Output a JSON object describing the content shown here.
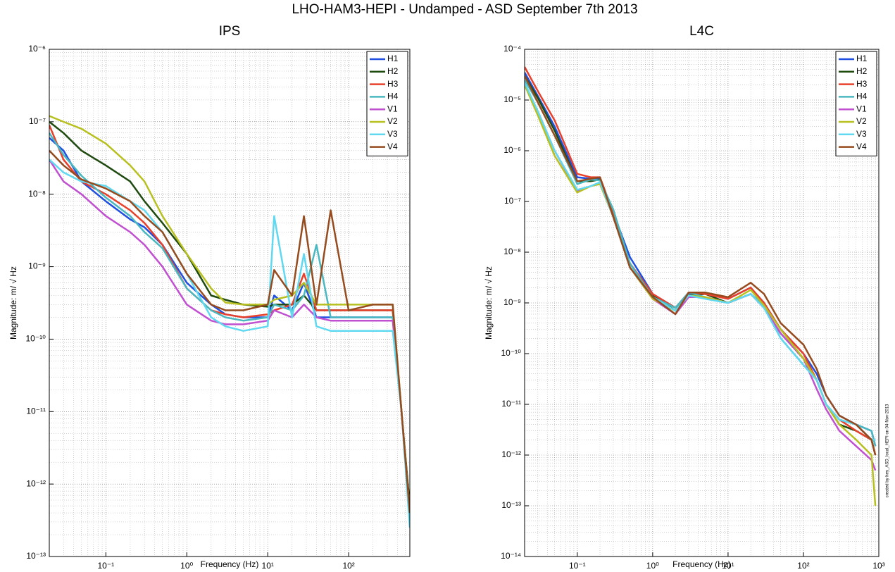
{
  "title": "LHO-HAM3-HEPI - Undamped - ASD September 7th 2013",
  "chart_data": [
    {
      "type": "line",
      "title": "IPS",
      "x_label": "Frequency (Hz)",
      "y_label": "Magnitude: m/ √ Hz",
      "log_x": true,
      "log_y": true,
      "grid": true,
      "minor_grid": true,
      "legend": "upper right",
      "xlim": [
        0.02,
        570
      ],
      "ylim": [
        1e-13,
        1e-06
      ],
      "xticks": [
        {
          "value": 0.1,
          "label": "10⁻¹"
        },
        {
          "value": 1,
          "label": "10⁰"
        },
        {
          "value": 10,
          "label": "10¹"
        },
        {
          "value": 100,
          "label": "10²"
        }
      ],
      "yticks": [
        {
          "value": 1e-13,
          "label": "10⁻¹³"
        },
        {
          "value": 1e-12,
          "label": "10⁻¹²"
        },
        {
          "value": 1e-11,
          "label": "10⁻¹¹"
        },
        {
          "value": 1e-10,
          "label": "10⁻¹⁰"
        },
        {
          "value": 1e-09,
          "label": "10⁻⁹"
        },
        {
          "value": 1e-08,
          "label": "10⁻⁸"
        },
        {
          "value": 1e-07,
          "label": "10⁻⁷"
        },
        {
          "value": 1e-06,
          "label": "10⁻⁶"
        }
      ],
      "x": [
        0.02,
        0.03,
        0.05,
        0.1,
        0.2,
        0.3,
        0.5,
        1,
        2,
        3,
        5,
        10,
        12,
        20,
        28,
        40,
        60,
        100,
        200,
        350,
        450,
        570
      ],
      "series": [
        {
          "name": "H1",
          "color": "#1f4fe0",
          "values": [
            6e-08,
            4e-08,
            1.5e-08,
            8e-09,
            4.5e-09,
            3.5e-09,
            2e-09,
            6e-10,
            3e-10,
            2.2e-10,
            2e-10,
            2e-10,
            4e-10,
            2.5e-10,
            6e-10,
            2e-10,
            2e-10,
            2e-10,
            2e-10,
            2e-10,
            1e-11,
            4e-13
          ]
        },
        {
          "name": "H2",
          "color": "#1f4a10",
          "values": [
            1e-07,
            7e-08,
            4e-08,
            2.5e-08,
            1.5e-08,
            8e-09,
            4e-09,
            1.5e-09,
            4e-10,
            3.5e-10,
            3e-10,
            2.8e-10,
            3e-10,
            3e-10,
            4e-10,
            2.5e-10,
            2.5e-10,
            2.5e-10,
            2.5e-10,
            2.5e-10,
            1e-11,
            5e-13
          ]
        },
        {
          "name": "H3",
          "color": "#e8402a",
          "values": [
            9e-08,
            3e-08,
            1.5e-08,
            1e-08,
            6e-09,
            4e-09,
            2e-09,
            5e-10,
            2.5e-10,
            2.2e-10,
            2e-10,
            2.2e-10,
            2.5e-10,
            3e-10,
            8e-10,
            2.5e-10,
            2.5e-10,
            2.5e-10,
            2.5e-10,
            2.5e-10,
            1e-11,
            4e-13
          ]
        },
        {
          "name": "H4",
          "color": "#4ab8c0",
          "values": [
            7e-08,
            3.5e-08,
            1.8e-08,
            9e-09,
            5e-09,
            3e-09,
            1.8e-09,
            5e-10,
            2.5e-10,
            2e-10,
            1.8e-10,
            2e-10,
            3e-10,
            2.5e-10,
            4e-10,
            2e-09,
            2e-10,
            2e-10,
            2e-10,
            2e-10,
            1e-11,
            4e-13
          ]
        },
        {
          "name": "V1",
          "color": "#c050d0",
          "values": [
            3e-08,
            1.5e-08,
            1e-08,
            5e-09,
            3e-09,
            2e-09,
            1e-09,
            3e-10,
            1.8e-10,
            1.6e-10,
            1.6e-10,
            1.8e-10,
            2.5e-10,
            2e-10,
            3e-10,
            2e-10,
            1.8e-10,
            1.8e-10,
            1.8e-10,
            1.8e-10,
            1e-11,
            3e-13
          ]
        },
        {
          "name": "V2",
          "color": "#b8c020",
          "values": [
            1.2e-07,
            1e-07,
            8e-08,
            5e-08,
            2.5e-08,
            1.5e-08,
            5e-09,
            1.5e-09,
            5e-10,
            3.2e-10,
            3e-10,
            3e-10,
            3.5e-10,
            4e-10,
            6e-10,
            3e-10,
            3e-10,
            3e-10,
            3e-10,
            3e-10,
            1e-11,
            4e-13
          ]
        },
        {
          "name": "V3",
          "color": "#60d8f0",
          "values": [
            3e-08,
            2e-08,
            1.5e-08,
            1.3e-08,
            8e-09,
            6e-09,
            3e-09,
            8e-10,
            2e-10,
            1.5e-10,
            1.3e-10,
            1.5e-10,
            5e-09,
            2e-10,
            1.5e-09,
            1.5e-10,
            1.3e-10,
            1.3e-10,
            1.3e-10,
            1.3e-10,
            1e-11,
            2.5e-13
          ]
        },
        {
          "name": "V4",
          "color": "#964b1e",
          "values": [
            4e-08,
            2.5e-08,
            1.6e-08,
            1.2e-08,
            8e-09,
            5e-09,
            3e-09,
            8e-10,
            3e-10,
            2.5e-10,
            2.5e-10,
            3e-10,
            9e-10,
            4e-10,
            5e-09,
            3e-10,
            6e-09,
            2.5e-10,
            3e-10,
            3e-10,
            1e-11,
            4e-13
          ]
        }
      ]
    },
    {
      "type": "line",
      "title": "L4C",
      "x_label": "Frequency (Hz)",
      "y_label": "Magnitude: m/ √ Hz",
      "annotation": "created by hey_ASD_local_HEPI on 04-Nov-2013",
      "log_x": true,
      "log_y": true,
      "grid": true,
      "minor_grid": true,
      "legend": "upper right",
      "xlim": [
        0.02,
        1000
      ],
      "ylim": [
        1e-14,
        0.0001
      ],
      "xticks": [
        {
          "value": 0.1,
          "label": "10⁻¹"
        },
        {
          "value": 1,
          "label": "10⁰"
        },
        {
          "value": 10,
          "label": "10¹"
        },
        {
          "value": 100,
          "label": "10²"
        },
        {
          "value": 1000,
          "label": "10³"
        }
      ],
      "yticks": [
        {
          "value": 1e-14,
          "label": "10⁻¹⁴"
        },
        {
          "value": 1e-13,
          "label": "10⁻¹³"
        },
        {
          "value": 1e-12,
          "label": "10⁻¹²"
        },
        {
          "value": 1e-11,
          "label": "10⁻¹¹"
        },
        {
          "value": 1e-10,
          "label": "10⁻¹⁰"
        },
        {
          "value": 1e-09,
          "label": "10⁻⁹"
        },
        {
          "value": 1e-08,
          "label": "10⁻⁸"
        },
        {
          "value": 1e-07,
          "label": "10⁻⁷"
        },
        {
          "value": 1e-06,
          "label": "10⁻⁶"
        },
        {
          "value": 1e-05,
          "label": "10⁻⁵"
        },
        {
          "value": 0.0001,
          "label": "10⁻⁴"
        }
      ],
      "x": [
        0.02,
        0.03,
        0.05,
        0.1,
        0.15,
        0.2,
        0.3,
        0.5,
        1,
        2,
        3,
        5,
        10,
        20,
        30,
        50,
        100,
        150,
        200,
        300,
        500,
        800,
        900
      ],
      "series": [
        {
          "name": "H1",
          "color": "#1f4fe0",
          "values": [
            3.5e-05,
            1.2e-05,
            3e-06,
            3e-07,
            2.8e-07,
            2.8e-07,
            6e-08,
            8e-09,
            1.5e-09,
            8e-10,
            1.5e-09,
            1.6e-09,
            1.2e-09,
            2e-09,
            1e-09,
            3e-10,
            1e-10,
            4e-11,
            1.5e-11,
            6e-12,
            4e-12,
            3e-12,
            1.5e-12
          ]
        },
        {
          "name": "H2",
          "color": "#1f4a10",
          "values": [
            3e-05,
            1.1e-05,
            2.5e-06,
            2.5e-07,
            2.5e-07,
            2.7e-07,
            5e-08,
            6e-09,
            1.4e-09,
            7e-10,
            1.4e-09,
            1.5e-09,
            1e-09,
            1.5e-09,
            8e-10,
            2.5e-10,
            8e-11,
            3e-11,
            1e-11,
            4e-12,
            3e-12,
            2e-12,
            1e-12
          ]
        },
        {
          "name": "H3",
          "color": "#e8402a",
          "values": [
            4.5e-05,
            1.5e-05,
            4e-06,
            3.5e-07,
            3e-07,
            3e-07,
            6e-08,
            6e-09,
            1.5e-09,
            8e-10,
            1.6e-09,
            1.5e-09,
            1.2e-09,
            2e-09,
            1e-09,
            3e-10,
            1e-10,
            3e-11,
            1e-11,
            5e-12,
            3e-12,
            2e-12,
            1e-12
          ]
        },
        {
          "name": "H4",
          "color": "#4ab8c0",
          "values": [
            2.5e-05,
            9e-06,
            2e-06,
            2.2e-07,
            2.7e-07,
            2.6e-07,
            7e-08,
            6e-09,
            1.3e-09,
            8e-10,
            1.6e-09,
            1.3e-09,
            1e-09,
            1.5e-09,
            9e-10,
            2e-10,
            6e-11,
            3e-11,
            1e-11,
            5e-12,
            4e-12,
            3e-12,
            1.5e-12
          ]
        },
        {
          "name": "V1",
          "color": "#c050d0",
          "values": [
            2e-05,
            6e-06,
            1e-06,
            1.6e-07,
            2e-07,
            2.3e-07,
            5e-08,
            5e-09,
            1.2e-09,
            6e-10,
            1.3e-09,
            1.3e-09,
            1e-09,
            1.5e-09,
            8e-10,
            2.5e-10,
            8e-11,
            2e-11,
            8e-12,
            3e-12,
            1.5e-12,
            8e-13,
            5e-13
          ]
        },
        {
          "name": "V2",
          "color": "#b8c020",
          "values": [
            2e-05,
            5e-06,
            8e-07,
            1.5e-07,
            2e-07,
            2.2e-07,
            5e-08,
            5e-09,
            1.2e-09,
            7e-10,
            1.4e-09,
            1.3e-09,
            1e-09,
            1.8e-09,
            9e-10,
            3e-10,
            8e-11,
            3e-11,
            1e-11,
            4e-12,
            2e-12,
            1e-12,
            1e-13
          ]
        },
        {
          "name": "V3",
          "color": "#60d8f0",
          "values": [
            2.2e-05,
            6e-06,
            1e-06,
            1.7e-07,
            2e-07,
            2.4e-07,
            5e-08,
            5e-09,
            1.3e-09,
            7e-10,
            1.4e-09,
            1.2e-09,
            1e-09,
            1.5e-09,
            8e-10,
            2e-10,
            6e-11,
            3e-11,
            1e-11,
            5e-12,
            4e-12,
            2e-12,
            2e-12
          ]
        },
        {
          "name": "V4",
          "color": "#964b1e",
          "values": [
            3e-05,
            9e-06,
            2e-06,
            2.5e-07,
            2.8e-07,
            3e-07,
            5e-08,
            5e-09,
            1.3e-09,
            6e-10,
            1.6e-09,
            1.6e-09,
            1.3e-09,
            2.5e-09,
            1.5e-09,
            4e-10,
            1.5e-10,
            5e-11,
            1.5e-11,
            6e-12,
            4e-12,
            2e-12,
            1e-12
          ]
        }
      ]
    }
  ]
}
